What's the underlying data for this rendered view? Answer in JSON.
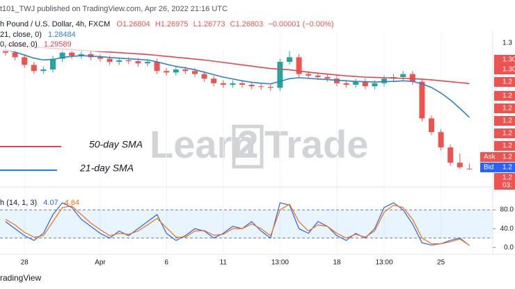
{
  "header": {
    "published": "t101_TWJ published on TradingView.com, Apr 26, 2022 21:16 UTC",
    "symbol": "h Pound / U.S. Dollar, 4h, FXCM",
    "ohlc": [
      "O1.26804",
      "H1.26975",
      "L1.26773",
      "C1.26803",
      "−0.00001 (−0.00%)"
    ],
    "sma21_label": "21, close, 0)",
    "sma50_label": "0, close, 0)",
    "stoch_label": "h (14, 1, 3)"
  },
  "watermark": [
    "Learn",
    "2",
    "Trade"
  ],
  "price_scale_labels": [
    "1.3",
    "1.30",
    "1.30",
    "1.2",
    "1.2",
    "1.2",
    "1.2",
    "1.2",
    "1.2"
  ],
  "ask": {
    "label": "Ask",
    "price": "1.2"
  },
  "bid": {
    "label": "Bid",
    "price": "1.2"
  },
  "last": {
    "price": "1.2",
    "time": "03:"
  },
  "footer": "radingView",
  "chart_data": [
    {
      "type": "candlestick",
      "up_color": "#26a69a",
      "down_color": "#ef5350",
      "ylim": [
        1.263,
        1.313
      ],
      "open": [
        1.307,
        1.306,
        1.3045,
        1.302,
        1.3,
        1.3005,
        1.304,
        1.306,
        1.305,
        1.3055,
        1.3045,
        1.304,
        1.303,
        1.3035,
        1.3032,
        1.3025,
        1.303,
        1.3,
        1.2995,
        1.3005,
        1.3,
        1.299,
        1.2975,
        1.296,
        1.2955,
        1.296,
        1.2955,
        1.295,
        1.2948,
        1.2945,
        1.303,
        1.3045,
        1.299,
        1.2985,
        1.298,
        1.2975,
        1.296,
        1.2955,
        1.2965,
        1.295,
        1.296,
        1.2975,
        1.298,
        1.299,
        1.2965,
        1.2845,
        1.28,
        1.275,
        1.27,
        1.26804
      ],
      "high": [
        1.308,
        1.307,
        1.3055,
        1.303,
        1.3015,
        1.305,
        1.307,
        1.307,
        1.3065,
        1.3065,
        1.3055,
        1.305,
        1.3045,
        1.3045,
        1.3042,
        1.304,
        1.304,
        1.301,
        1.3015,
        1.3015,
        1.301,
        1.3,
        1.2985,
        1.297,
        1.297,
        1.297,
        1.2965,
        1.296,
        1.2958,
        1.304,
        1.3065,
        1.3055,
        1.3,
        1.2995,
        1.299,
        1.2985,
        1.297,
        1.2975,
        1.2975,
        1.297,
        1.2985,
        1.299,
        1.3,
        1.3,
        1.2975,
        1.2855,
        1.281,
        1.276,
        1.273,
        1.26975
      ],
      "low": [
        1.305,
        1.3035,
        1.301,
        1.299,
        1.299,
        1.2995,
        1.303,
        1.304,
        1.304,
        1.3035,
        1.303,
        1.302,
        1.302,
        1.3022,
        1.3015,
        1.3015,
        1.299,
        1.2985,
        1.2985,
        1.299,
        1.298,
        1.2965,
        1.295,
        1.2945,
        1.2945,
        1.2945,
        1.294,
        1.2938,
        1.2935,
        1.2935,
        1.302,
        1.298,
        1.2975,
        1.297,
        1.2965,
        1.295,
        1.2945,
        1.2945,
        1.294,
        1.294,
        1.295,
        1.2965,
        1.297,
        1.2955,
        1.2835,
        1.279,
        1.274,
        1.269,
        1.268,
        1.26773
      ],
      "close": [
        1.306,
        1.3045,
        1.302,
        1.3,
        1.3005,
        1.304,
        1.306,
        1.305,
        1.3055,
        1.3045,
        1.304,
        1.303,
        1.3035,
        1.3032,
        1.3025,
        1.303,
        1.3,
        1.2995,
        1.3005,
        1.3,
        1.299,
        1.2975,
        1.296,
        1.2955,
        1.296,
        1.2955,
        1.295,
        1.2948,
        1.2945,
        1.303,
        1.3045,
        1.299,
        1.2985,
        1.298,
        1.2975,
        1.296,
        1.2955,
        1.2965,
        1.295,
        1.296,
        1.2975,
        1.298,
        1.299,
        1.2965,
        1.2845,
        1.28,
        1.275,
        1.27,
        1.2685,
        1.26803
      ],
      "series": [
        {
          "name": "50-day SMA",
          "color": "#e0464e",
          "values": [
            1.3085,
            1.3083,
            1.308,
            1.3078,
            1.3076,
            1.3074,
            1.3072,
            1.307,
            1.3068,
            1.3066,
            1.3064,
            1.3062,
            1.306,
            1.3058,
            1.3056,
            1.3054,
            1.3051,
            1.3048,
            1.3045,
            1.3042,
            1.3039,
            1.3036,
            1.3032,
            1.3028,
            1.3024,
            1.302,
            1.3016,
            1.3012,
            1.3008,
            1.3006,
            1.3004,
            1.3,
            1.2996,
            1.2993,
            1.299,
            1.2987,
            1.2984,
            1.2982,
            1.298,
            1.2979,
            1.2978,
            1.2977,
            1.2976,
            1.2975,
            1.2973,
            1.2971,
            1.2968,
            1.2965,
            1.2962,
            1.29589
          ]
        },
        {
          "name": "21-day SMA",
          "color": "#2c7fd1",
          "values": [
            1.307,
            1.3062,
            1.3052,
            1.3042,
            1.3036,
            1.3038,
            1.3044,
            1.3048,
            1.305,
            1.3049,
            1.3047,
            1.3044,
            1.3042,
            1.304,
            1.3038,
            1.3036,
            1.303,
            1.3022,
            1.3015,
            1.301,
            1.3004,
            1.2996,
            1.2988,
            1.298,
            1.2974,
            1.2968,
            1.2963,
            1.296,
            1.2958,
            1.2966,
            1.2975,
            1.2978,
            1.2976,
            1.2974,
            1.2972,
            1.297,
            1.2968,
            1.2966,
            1.2965,
            1.2964,
            1.2965,
            1.2966,
            1.2968,
            1.2966,
            1.2958,
            1.2946,
            1.2928,
            1.2905,
            1.2878,
            1.28484
          ]
        }
      ]
    },
    {
      "type": "line",
      "categories": [
        null,
        null,
        "28",
        null,
        null,
        null,
        null,
        null,
        null,
        null,
        "Apr",
        null,
        null,
        null,
        null,
        null,
        null,
        "6",
        null,
        null,
        null,
        null,
        null,
        "11",
        null,
        null,
        null,
        null,
        null,
        "13:00",
        null,
        null,
        null,
        null,
        null,
        "18",
        null,
        null,
        null,
        null,
        "13:00",
        null,
        null,
        null,
        null,
        null,
        "25",
        null,
        null,
        null
      ],
      "ylim": [
        -13,
        120
      ],
      "yticks": [
        {
          "value": 0,
          "label": "0.0"
        },
        {
          "value": 40,
          "label": "40.0"
        },
        {
          "value": 80,
          "label": "80.0"
        }
      ],
      "band": [
        20,
        80
      ],
      "band_color": "#2196f3",
      "series": [
        {
          "color": "#2962ff",
          "values": [
            55,
            40,
            25,
            15,
            30,
            70,
            95,
            85,
            60,
            45,
            30,
            20,
            35,
            25,
            40,
            55,
            70,
            30,
            15,
            25,
            40,
            35,
            20,
            30,
            45,
            40,
            55,
            35,
            20,
            95,
            90,
            40,
            30,
            55,
            45,
            25,
            15,
            30,
            20,
            40,
            85,
            95,
            80,
            50,
            10,
            5,
            8,
            15,
            20,
            4.07
          ]
        },
        {
          "color": "#ff6d00",
          "values": [
            60,
            48,
            32,
            22,
            25,
            55,
            85,
            88,
            70,
            52,
            38,
            25,
            30,
            28,
            35,
            48,
            62,
            42,
            22,
            22,
            35,
            36,
            26,
            28,
            40,
            40,
            50,
            40,
            25,
            80,
            92,
            55,
            35,
            48,
            45,
            30,
            20,
            28,
            22,
            35,
            75,
            90,
            85,
            60,
            20,
            8,
            8,
            12,
            18,
            4.64
          ]
        }
      ]
    }
  ]
}
